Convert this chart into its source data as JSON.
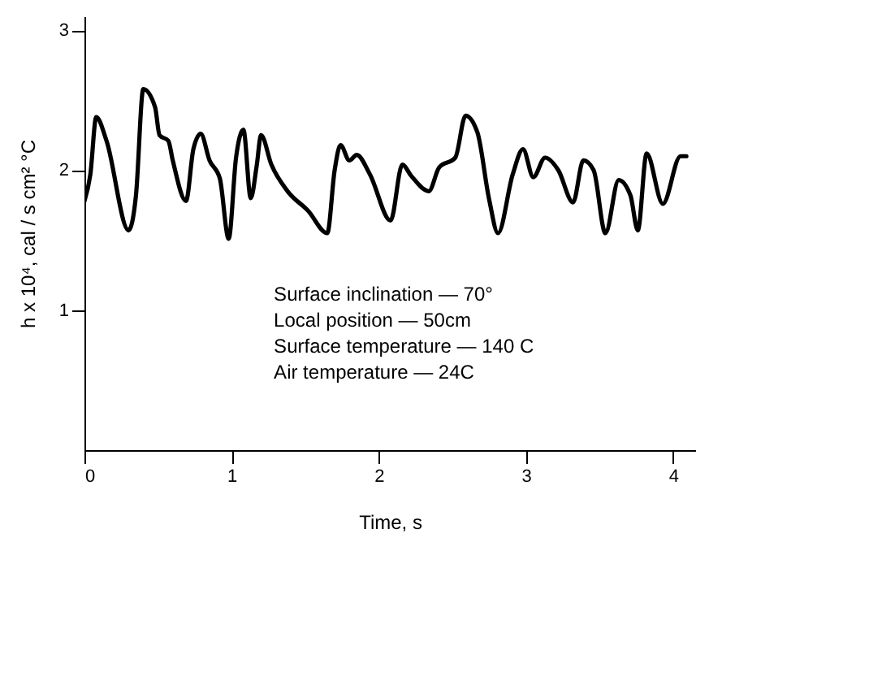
{
  "chart_data": {
    "type": "line",
    "xlabel": "Time,  s",
    "ylabel": "h x 10⁴,  cal / s cm² °C",
    "x": [
      0,
      0.04,
      0.08,
      0.15,
      0.3,
      0.35,
      0.4,
      0.48,
      0.51,
      0.57,
      0.6,
      0.69,
      0.74,
      0.79,
      0.85,
      0.92,
      0.98,
      1.03,
      1.08,
      1.13,
      1.17,
      1.2,
      1.27,
      1.38,
      1.52,
      1.65,
      1.7,
      1.74,
      1.8,
      1.85,
      1.94,
      2.08,
      2.16,
      2.22,
      2.34,
      2.41,
      2.52,
      2.59,
      2.67,
      2.75,
      2.81,
      2.91,
      2.98,
      3.05,
      3.13,
      3.22,
      3.32,
      3.39,
      3.46,
      3.54,
      3.63,
      3.71,
      3.76,
      3.82,
      3.93,
      4.05,
      4.09
    ],
    "series": [
      {
        "color": "#000000",
        "values": [
          1.78,
          1.97,
          2.38,
          2.21,
          1.57,
          1.82,
          2.58,
          2.45,
          2.25,
          2.21,
          2.07,
          1.78,
          2.15,
          2.26,
          2.07,
          1.94,
          1.51,
          2.09,
          2.29,
          1.8,
          2.03,
          2.25,
          2.04,
          1.85,
          1.71,
          1.55,
          2.0,
          2.18,
          2.07,
          2.11,
          1.97,
          1.64,
          2.04,
          1.96,
          1.85,
          2.02,
          2.09,
          2.39,
          2.27,
          1.79,
          1.55,
          1.97,
          2.15,
          1.95,
          2.09,
          2.0,
          1.77,
          2.07,
          2.0,
          1.55,
          1.93,
          1.82,
          1.57,
          2.12,
          1.76,
          2.1,
          2.1
        ]
      }
    ],
    "xlim": [
      0,
      4.15
    ],
    "ylim": [
      0,
      3.1
    ],
    "xticks": [
      0,
      1,
      2,
      3,
      4
    ],
    "yticks": [
      1,
      2,
      3
    ],
    "grid": false,
    "marker": "none",
    "line_style": "solid",
    "annotations": [
      "Surface inclination  — 70°",
      "Local position  — 50cm",
      "Surface temperature  — 140 C",
      "Air temperature  — 24C"
    ]
  }
}
